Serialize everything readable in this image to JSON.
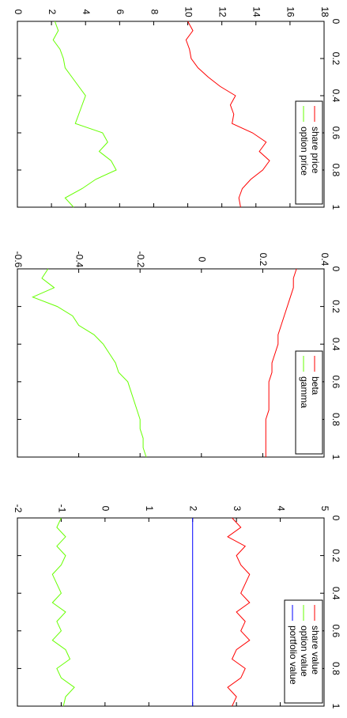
{
  "chart_data": [
    {
      "type": "line",
      "x": [
        0,
        0.05,
        0.1,
        0.15,
        0.2,
        0.25,
        0.3,
        0.35,
        0.4,
        0.45,
        0.5,
        0.55,
        0.6,
        0.65,
        0.7,
        0.75,
        0.8,
        0.85,
        0.9,
        0.95,
        1
      ],
      "xlim": [
        0,
        1
      ],
      "xticks": [
        0,
        0.2,
        0.4,
        0.6,
        0.8,
        1
      ],
      "ylim": [
        0,
        18
      ],
      "yticks": [
        0,
        2,
        4,
        6,
        8,
        10,
        12,
        14,
        16,
        18
      ],
      "series": [
        {
          "name": "share price",
          "color": "#ff0000",
          "values": [
            10,
            10.3,
            9.9,
            10.1,
            10.2,
            10.6,
            11.2,
            11.9,
            12.8,
            12.5,
            12.7,
            12.6,
            13.8,
            14.6,
            14.2,
            14.8,
            14.4,
            13.7,
            13.2,
            13.0,
            13.1
          ]
        },
        {
          "name": "option price",
          "color": "#66ff00",
          "values": [
            2.2,
            2.4,
            2.1,
            2.5,
            2.7,
            2.8,
            3.2,
            3.6,
            4.0,
            3.8,
            3.6,
            3.4,
            5.0,
            5.3,
            4.8,
            5.5,
            5.8,
            4.6,
            3.8,
            2.8,
            3.3
          ]
        }
      ]
    },
    {
      "type": "line",
      "x": [
        0,
        0.05,
        0.1,
        0.15,
        0.2,
        0.25,
        0.3,
        0.35,
        0.4,
        0.45,
        0.5,
        0.55,
        0.6,
        0.65,
        0.7,
        0.75,
        0.8,
        0.85,
        0.9,
        0.95,
        1
      ],
      "xlim": [
        0,
        1
      ],
      "xticks": [
        0,
        0.2,
        0.4,
        0.6,
        0.8,
        1
      ],
      "ylim": [
        -0.6,
        0.4
      ],
      "yticks": [
        -0.6,
        -0.4,
        -0.2,
        0,
        0.2,
        0.4
      ],
      "series": [
        {
          "name": "beta",
          "color": "#ff0000",
          "values": [
            0.31,
            0.3,
            0.3,
            0.29,
            0.28,
            0.27,
            0.26,
            0.25,
            0.25,
            0.24,
            0.23,
            0.23,
            0.22,
            0.22,
            0.22,
            0.22,
            0.21,
            0.21,
            0.21,
            0.21,
            0.21
          ]
        },
        {
          "name": "gamma",
          "color": "#66ff00",
          "values": [
            -0.5,
            -0.52,
            -0.48,
            -0.55,
            -0.47,
            -0.42,
            -0.4,
            -0.35,
            -0.32,
            -0.3,
            -0.28,
            -0.27,
            -0.24,
            -0.23,
            -0.22,
            -0.21,
            -0.2,
            -0.2,
            -0.19,
            -0.19,
            -0.18
          ]
        }
      ]
    },
    {
      "type": "line",
      "x": [
        0,
        0.05,
        0.1,
        0.15,
        0.2,
        0.25,
        0.3,
        0.35,
        0.4,
        0.45,
        0.5,
        0.55,
        0.6,
        0.65,
        0.7,
        0.75,
        0.8,
        0.85,
        0.9,
        0.95,
        1
      ],
      "xlim": [
        0,
        1
      ],
      "xticks": [
        0,
        0.2,
        0.4,
        0.6,
        0.8,
        1
      ],
      "ylim": [
        -2,
        5
      ],
      "yticks": [
        -2,
        -1,
        0,
        1,
        2,
        3,
        4,
        5
      ],
      "series": [
        {
          "name": "share value",
          "color": "#ff0000",
          "values": [
            2.9,
            3.1,
            2.8,
            3.2,
            3.0,
            3.1,
            3.3,
            3.2,
            3.1,
            3.3,
            3.0,
            3.2,
            3.1,
            3.3,
            3.0,
            2.9,
            3.2,
            3.1,
            2.8,
            3.0,
            2.9
          ]
        },
        {
          "name": "option value",
          "color": "#66ff00",
          "values": [
            -1.0,
            -1.1,
            -0.9,
            -1.1,
            -0.9,
            -1.0,
            -1.2,
            -1.1,
            -1.0,
            -1.2,
            -0.9,
            -1.1,
            -1.0,
            -1.2,
            -0.9,
            -0.8,
            -1.1,
            -1.0,
            -0.7,
            -0.9,
            -0.95
          ]
        },
        {
          "name": "portfolio value",
          "color": "#0000ff",
          "values": [
            2,
            2,
            2,
            2,
            2,
            2,
            2,
            2,
            2,
            2,
            2,
            2,
            2,
            2,
            2,
            2,
            2,
            2,
            2,
            2,
            2
          ]
        }
      ]
    }
  ]
}
